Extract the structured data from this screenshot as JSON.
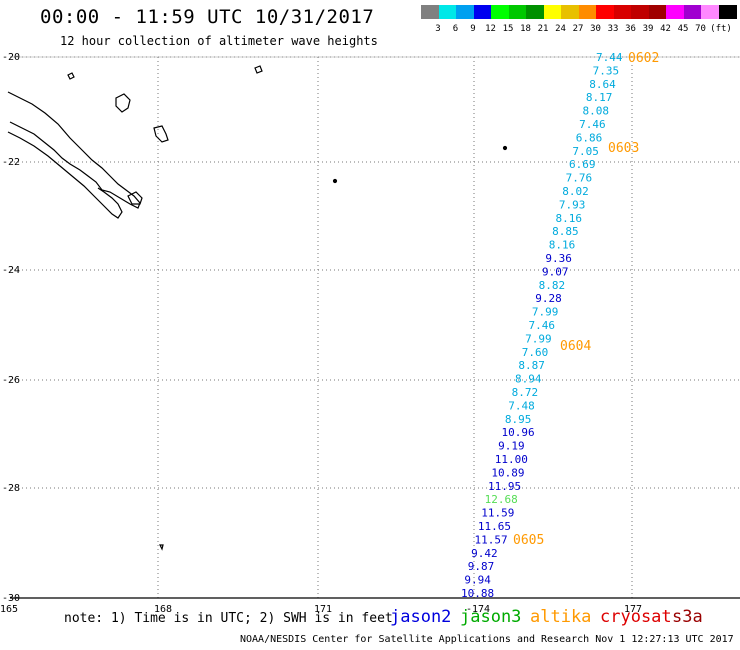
{
  "header": {
    "title": "00:00 - 11:59 UTC 10/31/2017",
    "subtitle": "12 hour collection of altimeter wave heights"
  },
  "legend": {
    "colors": [
      "#808080",
      "#00e8e8",
      "#00a0f0",
      "#0000f0",
      "#00ff00",
      "#00c800",
      "#009000",
      "#ffff00",
      "#e8c000",
      "#ff8c00",
      "#ff0000",
      "#d80000",
      "#c00000",
      "#a00000",
      "#ff00ff",
      "#a000d0",
      "#ff88ff",
      "#000000"
    ],
    "labels": [
      "3",
      "6",
      "9",
      "12",
      "15",
      "18",
      "21",
      "24",
      "27",
      "30",
      "33",
      "36",
      "39",
      "42",
      "45",
      "70"
    ],
    "unit": "(ft)"
  },
  "axes": {
    "lat_labels": [
      "-20",
      "-22",
      "-24",
      "-26",
      "-28",
      "-30"
    ],
    "lon_labels": [
      "165",
      "168",
      "171",
      "-174",
      "177"
    ]
  },
  "passes": [
    {
      "label": "0602",
      "color": "#ff9900"
    },
    {
      "label": "0603",
      "color": "#ff9900"
    },
    {
      "label": "0604",
      "color": "#ff9900"
    },
    {
      "label": "0605",
      "color": "#ff9900"
    }
  ],
  "observations": [
    {
      "value": "7.44",
      "color": "#00aadd"
    },
    {
      "value": "7.35",
      "color": "#00aadd"
    },
    {
      "value": "8.64",
      "color": "#00aadd"
    },
    {
      "value": "8.17",
      "color": "#00aadd"
    },
    {
      "value": "8.08",
      "color": "#00aadd"
    },
    {
      "value": "7.46",
      "color": "#00aadd"
    },
    {
      "value": "6.86",
      "color": "#00aadd"
    },
    {
      "value": "7.05",
      "color": "#00aadd"
    },
    {
      "value": "6.69",
      "color": "#00aadd"
    },
    {
      "value": "7.76",
      "color": "#00aadd"
    },
    {
      "value": "8.02",
      "color": "#00aadd"
    },
    {
      "value": "7.93",
      "color": "#00aadd"
    },
    {
      "value": "8.16",
      "color": "#00aadd"
    },
    {
      "value": "8.85",
      "color": "#00aadd"
    },
    {
      "value": "8.16",
      "color": "#00aadd"
    },
    {
      "value": "9.36",
      "color": "#0000cc"
    },
    {
      "value": "9.07",
      "color": "#0000cc"
    },
    {
      "value": "8.82",
      "color": "#00aadd"
    },
    {
      "value": "9.28",
      "color": "#0000cc"
    },
    {
      "value": "7.99",
      "color": "#00aadd"
    },
    {
      "value": "7.46",
      "color": "#00aadd"
    },
    {
      "value": "7.99",
      "color": "#00aadd"
    },
    {
      "value": "7.60",
      "color": "#00aadd"
    },
    {
      "value": "8.87",
      "color": "#00aadd"
    },
    {
      "value": "8.94",
      "color": "#00aadd"
    },
    {
      "value": "8.72",
      "color": "#00aadd"
    },
    {
      "value": "7.48",
      "color": "#00aadd"
    },
    {
      "value": "8.95",
      "color": "#00aadd"
    },
    {
      "value": "10.96",
      "color": "#0000cc"
    },
    {
      "value": "9.19",
      "color": "#0000cc"
    },
    {
      "value": "11.00",
      "color": "#0000cc"
    },
    {
      "value": "10.89",
      "color": "#0000cc"
    },
    {
      "value": "11.95",
      "color": "#0000cc"
    },
    {
      "value": "12.68",
      "color": "#55dd55"
    },
    {
      "value": "11.59",
      "color": "#0000cc"
    },
    {
      "value": "11.65",
      "color": "#0000cc"
    },
    {
      "value": "11.57",
      "color": "#0000cc"
    },
    {
      "value": "9.42",
      "color": "#0000cc"
    },
    {
      "value": "9.87",
      "color": "#0000cc"
    },
    {
      "value": "9.94",
      "color": "#0000cc"
    },
    {
      "value": "10.88",
      "color": "#0000cc"
    }
  ],
  "footer": {
    "note": "note: 1) Time is in UTC; 2) SWH is in feet",
    "satellites": [
      {
        "name": "jason2",
        "color": "#0000dd"
      },
      {
        "name": "jason3",
        "color": "#00aa00"
      },
      {
        "name": "altika",
        "color": "#ff9900"
      },
      {
        "name": "cryosat",
        "color": "#dd0000"
      },
      {
        "name": "s3a",
        "color": "#990000"
      }
    ],
    "credit": "NOAA/NESDIS Center for Satellite Applications and Research   Nov  1 12:27:13 UTC 2017"
  }
}
